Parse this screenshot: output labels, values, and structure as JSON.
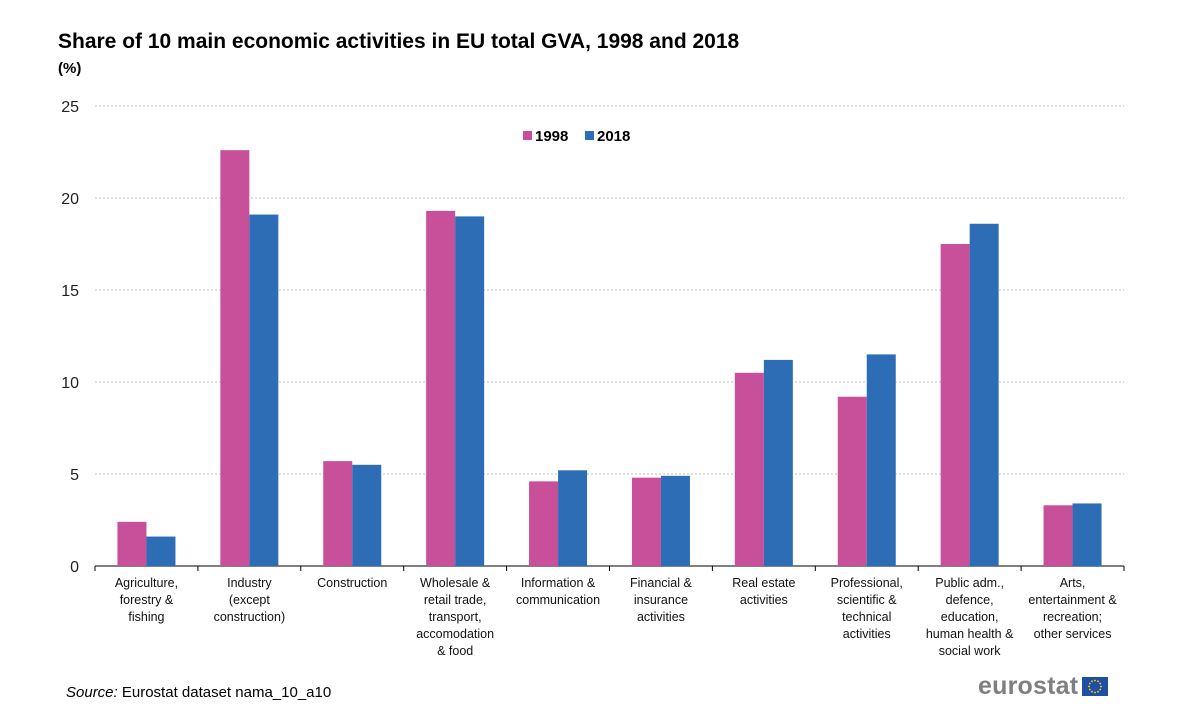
{
  "header": {
    "title": "Share of 10 main economic activities in EU total GVA, 1998 and 2018",
    "subtitle": "(%)"
  },
  "footer": {
    "source_label": "Source:",
    "source_text": " Eurostat dataset nama_10_a10",
    "brand": "eurostat"
  },
  "colors": {
    "series_1998": "#c8509a",
    "series_2018": "#2d6db5",
    "grid": "#bfbfbf"
  },
  "icons": {
    "logo": "eu-flag-icon"
  },
  "chart_data": {
    "type": "bar",
    "title": "Share of 10 main economic activities in EU total GVA, 1998 and 2018",
    "subtitle": "(%)",
    "xlabel": "",
    "ylabel": "",
    "ylim": [
      0,
      25
    ],
    "yticks": [
      0,
      5,
      10,
      15,
      20,
      25
    ],
    "grid": true,
    "legend_position": "top-center",
    "categories": [
      "Agriculture, forestry & fishing",
      "Industry (except construction)",
      "Construction",
      "Wholesale & retail trade, transport, accomodation & food",
      "Information & communication",
      "Financial & insurance activities",
      "Real estate activities",
      "Professional, scientific & technical activities",
      "Public adm., defence, education, human health & social work",
      "Arts, entertainment & recreation; other services"
    ],
    "category_label_lines": [
      [
        "Agriculture,",
        "forestry &",
        "fishing"
      ],
      [
        "Industry",
        "(except",
        "construction)"
      ],
      [
        "Construction"
      ],
      [
        "Wholesale &",
        "retail trade,",
        "transport,",
        "accomodation",
        "& food"
      ],
      [
        "Information &",
        "communication"
      ],
      [
        "Financial &",
        "insurance",
        "activities"
      ],
      [
        "Real estate",
        "activities"
      ],
      [
        "Professional,",
        "scientific &",
        "technical",
        "activities"
      ],
      [
        "Public adm.,",
        "defence,",
        "education,",
        "human health &",
        "social work"
      ],
      [
        "Arts,",
        "entertainment &",
        "recreation;",
        "other services"
      ]
    ],
    "series": [
      {
        "name": "1998",
        "color": "#c8509a",
        "values": [
          2.4,
          22.6,
          5.7,
          19.3,
          4.6,
          4.8,
          10.5,
          9.2,
          17.5,
          3.3
        ]
      },
      {
        "name": "2018",
        "color": "#2d6db5",
        "values": [
          1.6,
          19.1,
          5.5,
          19.0,
          5.2,
          4.9,
          11.2,
          11.5,
          18.6,
          3.4
        ]
      }
    ]
  }
}
